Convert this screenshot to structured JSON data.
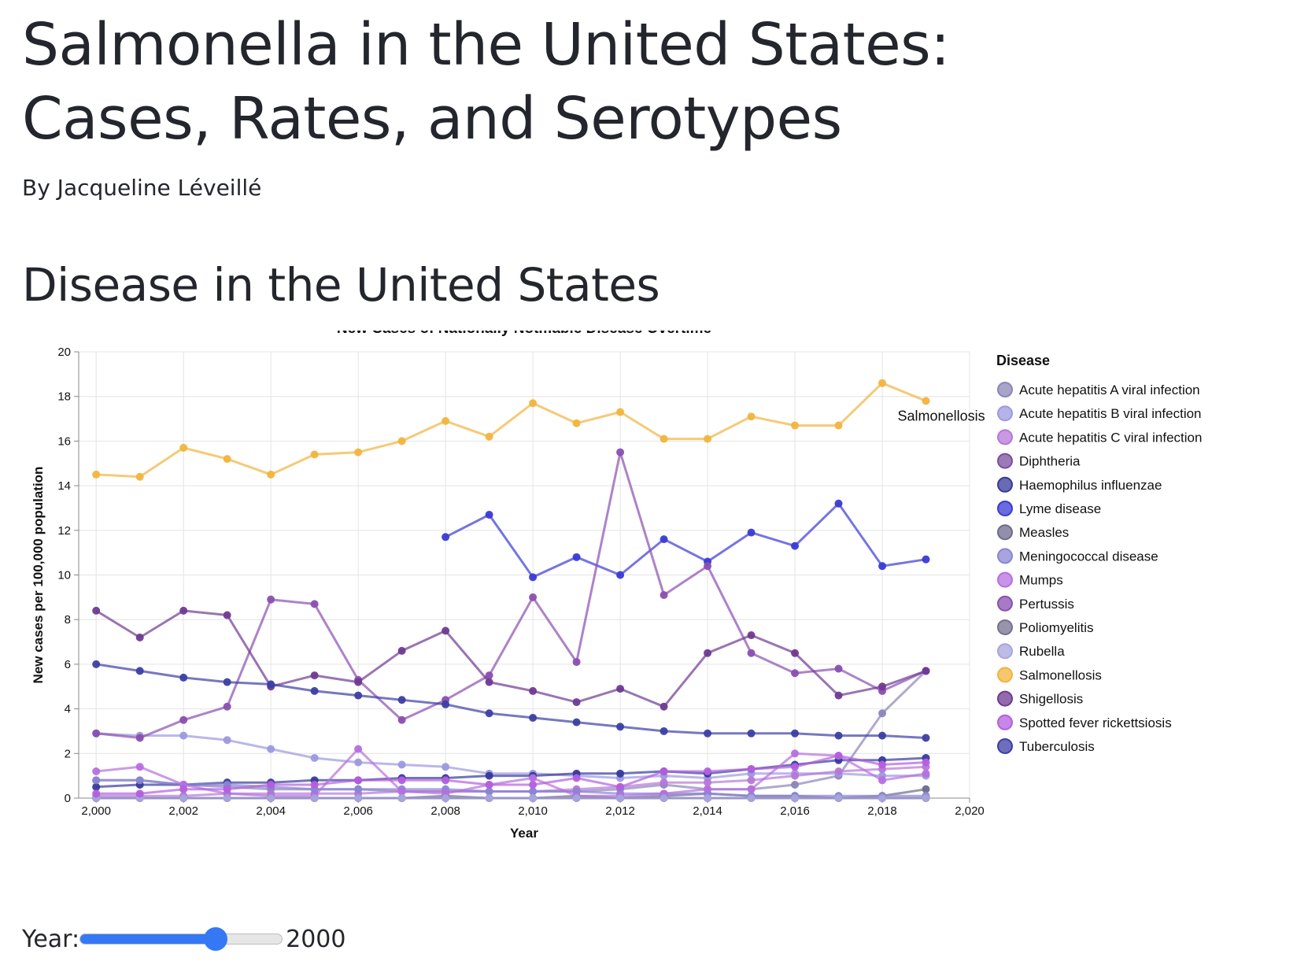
{
  "header": {
    "title_line1": "Salmonella in the United States:",
    "title_line2": "Cases, Rates, and Serotypes",
    "byline": "By Jacqueline Léveillé",
    "section_title": "Disease in the United States"
  },
  "slider": {
    "label": "Year:",
    "value": "2000",
    "position_fraction": 0.67,
    "accent": "#3478f6"
  },
  "chart_data": {
    "type": "line",
    "title": "New Cases of Nationally Notifiable Disease Overtime",
    "xlabel": "Year",
    "ylabel": "New cases per 100,000 population",
    "xlim": [
      1999.6,
      2020
    ],
    "ylim": [
      0,
      20
    ],
    "x_ticks": [
      2000,
      2002,
      2004,
      2006,
      2008,
      2010,
      2012,
      2014,
      2016,
      2018,
      2020
    ],
    "x_tick_labels": [
      "2,000",
      "2,002",
      "2,004",
      "2,006",
      "2,008",
      "2,010",
      "2,012",
      "2,014",
      "2,016",
      "2,018",
      "2,020"
    ],
    "y_ticks": [
      0,
      2,
      4,
      6,
      8,
      10,
      12,
      14,
      16,
      18,
      20
    ],
    "grid": true,
    "legend_title": "Disease",
    "legend_position": "right",
    "annotation": {
      "text": "Salmonellosis",
      "series": "Salmonellosis",
      "x": 2019.2,
      "y": 17.8
    },
    "x": [
      2000,
      2001,
      2002,
      2003,
      2004,
      2005,
      2006,
      2007,
      2008,
      2009,
      2010,
      2011,
      2012,
      2013,
      2014,
      2015,
      2016,
      2017,
      2018,
      2019
    ],
    "series": [
      {
        "name": "Acute hepatitis A viral infection",
        "color": "#8b86b8",
        "values": [
          0.8,
          0.8,
          0.6,
          0.5,
          0.4,
          0.4,
          0.4,
          0.3,
          0.3,
          0.3,
          0.3,
          0.3,
          0.4,
          0.6,
          0.4,
          0.4,
          0.6,
          1.0,
          3.8,
          5.7
        ]
      },
      {
        "name": "Acute hepatitis B viral infection",
        "color": "#9c99e0",
        "values": [
          2.9,
          2.8,
          2.8,
          2.6,
          2.2,
          1.8,
          1.6,
          1.5,
          1.4,
          1.1,
          1.1,
          1.0,
          0.9,
          1.0,
          0.9,
          1.1,
          1.1,
          1.1,
          1.0,
          1.0
        ]
      },
      {
        "name": "Acute hepatitis C viral infection",
        "color": "#b777d8",
        "values": [
          0.1,
          0.1,
          0.1,
          0.2,
          0.2,
          0.2,
          0.2,
          0.3,
          0.3,
          0.3,
          0.3,
          0.4,
          0.5,
          0.7,
          0.7,
          0.8,
          1.0,
          1.2,
          1.3,
          1.4
        ]
      },
      {
        "name": "Diphtheria",
        "color": "#7b4d9f",
        "values": [
          0,
          0,
          0,
          0,
          0,
          0,
          0,
          0,
          0,
          0,
          0,
          0,
          0,
          0,
          0,
          0,
          0,
          0,
          0,
          0
        ]
      },
      {
        "name": "Haemophilus influenzae",
        "color": "#363a9b",
        "values": [
          0.5,
          0.6,
          0.6,
          0.7,
          0.7,
          0.8,
          0.8,
          0.9,
          0.9,
          1.0,
          1.0,
          1.1,
          1.1,
          1.2,
          1.1,
          1.3,
          1.5,
          1.7,
          1.7,
          1.8
        ]
      },
      {
        "name": "Lyme disease",
        "color": "#3a3ad6",
        "values": [
          null,
          null,
          null,
          null,
          null,
          null,
          null,
          null,
          11.7,
          12.7,
          9.9,
          10.8,
          10.0,
          11.6,
          10.6,
          11.9,
          11.3,
          13.2,
          10.4,
          10.7
        ]
      },
      {
        "name": "Measles",
        "color": "#6e6a8e",
        "values": [
          0,
          0,
          0,
          0,
          0,
          0,
          0,
          0,
          0.1,
          0,
          0,
          0.1,
          0,
          0.1,
          0.2,
          0.1,
          0.1,
          0,
          0.1,
          0.4
        ]
      },
      {
        "name": "Meningococcal disease",
        "color": "#8a86d4",
        "values": [
          0.8,
          0.8,
          0.6,
          0.6,
          0.5,
          0.4,
          0.4,
          0.4,
          0.4,
          0.3,
          0.3,
          0.3,
          0.2,
          0.2,
          0.2,
          0.1,
          0.1,
          0.1,
          0.1,
          0.1
        ]
      },
      {
        "name": "Mumps",
        "color": "#b66fe0",
        "values": [
          1.2,
          1.4,
          0.6,
          0.2,
          0.1,
          0.1,
          2.2,
          0.3,
          0.2,
          0.6,
          0.9,
          0.1,
          0.1,
          0.2,
          0.4,
          0.4,
          2.0,
          1.9,
          0.8,
          1.1
        ]
      },
      {
        "name": "Pertussis",
        "color": "#8a4fb0",
        "values": [
          2.9,
          2.7,
          3.5,
          4.1,
          8.9,
          8.7,
          5.3,
          3.5,
          4.4,
          5.5,
          9.0,
          6.1,
          15.5,
          9.1,
          10.4,
          6.5,
          5.6,
          5.8,
          4.8,
          5.7
        ]
      },
      {
        "name": "Poliomyelitis",
        "color": "#75718f",
        "values": [
          0,
          0,
          0,
          0,
          0,
          0,
          0,
          0,
          0,
          0,
          0,
          0,
          0,
          0,
          0,
          0,
          0,
          0,
          0,
          0
        ]
      },
      {
        "name": "Rubella",
        "color": "#a7a5de",
        "values": [
          0,
          0,
          0,
          0,
          0,
          0,
          0,
          0,
          0,
          0,
          0,
          0,
          0,
          0,
          0,
          0,
          0,
          0,
          0,
          0
        ]
      },
      {
        "name": "Salmonellosis",
        "color": "#f1b43e",
        "values": [
          14.5,
          14.4,
          15.7,
          15.2,
          14.5,
          15.4,
          15.5,
          16.0,
          16.9,
          16.2,
          17.7,
          16.8,
          17.3,
          16.1,
          16.1,
          17.1,
          16.7,
          16.7,
          18.6,
          17.8
        ]
      },
      {
        "name": "Shigellosis",
        "color": "#6f3a92",
        "values": [
          8.4,
          7.2,
          8.4,
          8.2,
          5.0,
          5.5,
          5.2,
          6.6,
          7.5,
          5.2,
          4.8,
          4.3,
          4.9,
          4.1,
          6.5,
          7.3,
          6.5,
          4.6,
          5.0,
          5.7
        ]
      },
      {
        "name": "Spotted fever rickettsiosis",
        "color": "#b45fde",
        "values": [
          0.2,
          0.2,
          0.4,
          0.4,
          0.6,
          0.6,
          0.8,
          0.8,
          0.8,
          0.6,
          0.6,
          0.9,
          0.5,
          1.2,
          1.2,
          1.3,
          1.4,
          1.9,
          1.5,
          1.6
        ]
      },
      {
        "name": "Tuberculosis",
        "color": "#3c3fa3",
        "values": [
          6.0,
          5.7,
          5.4,
          5.2,
          5.1,
          4.8,
          4.6,
          4.4,
          4.2,
          3.8,
          3.6,
          3.4,
          3.2,
          3.0,
          2.9,
          2.9,
          2.9,
          2.8,
          2.8,
          2.7
        ]
      }
    ]
  }
}
